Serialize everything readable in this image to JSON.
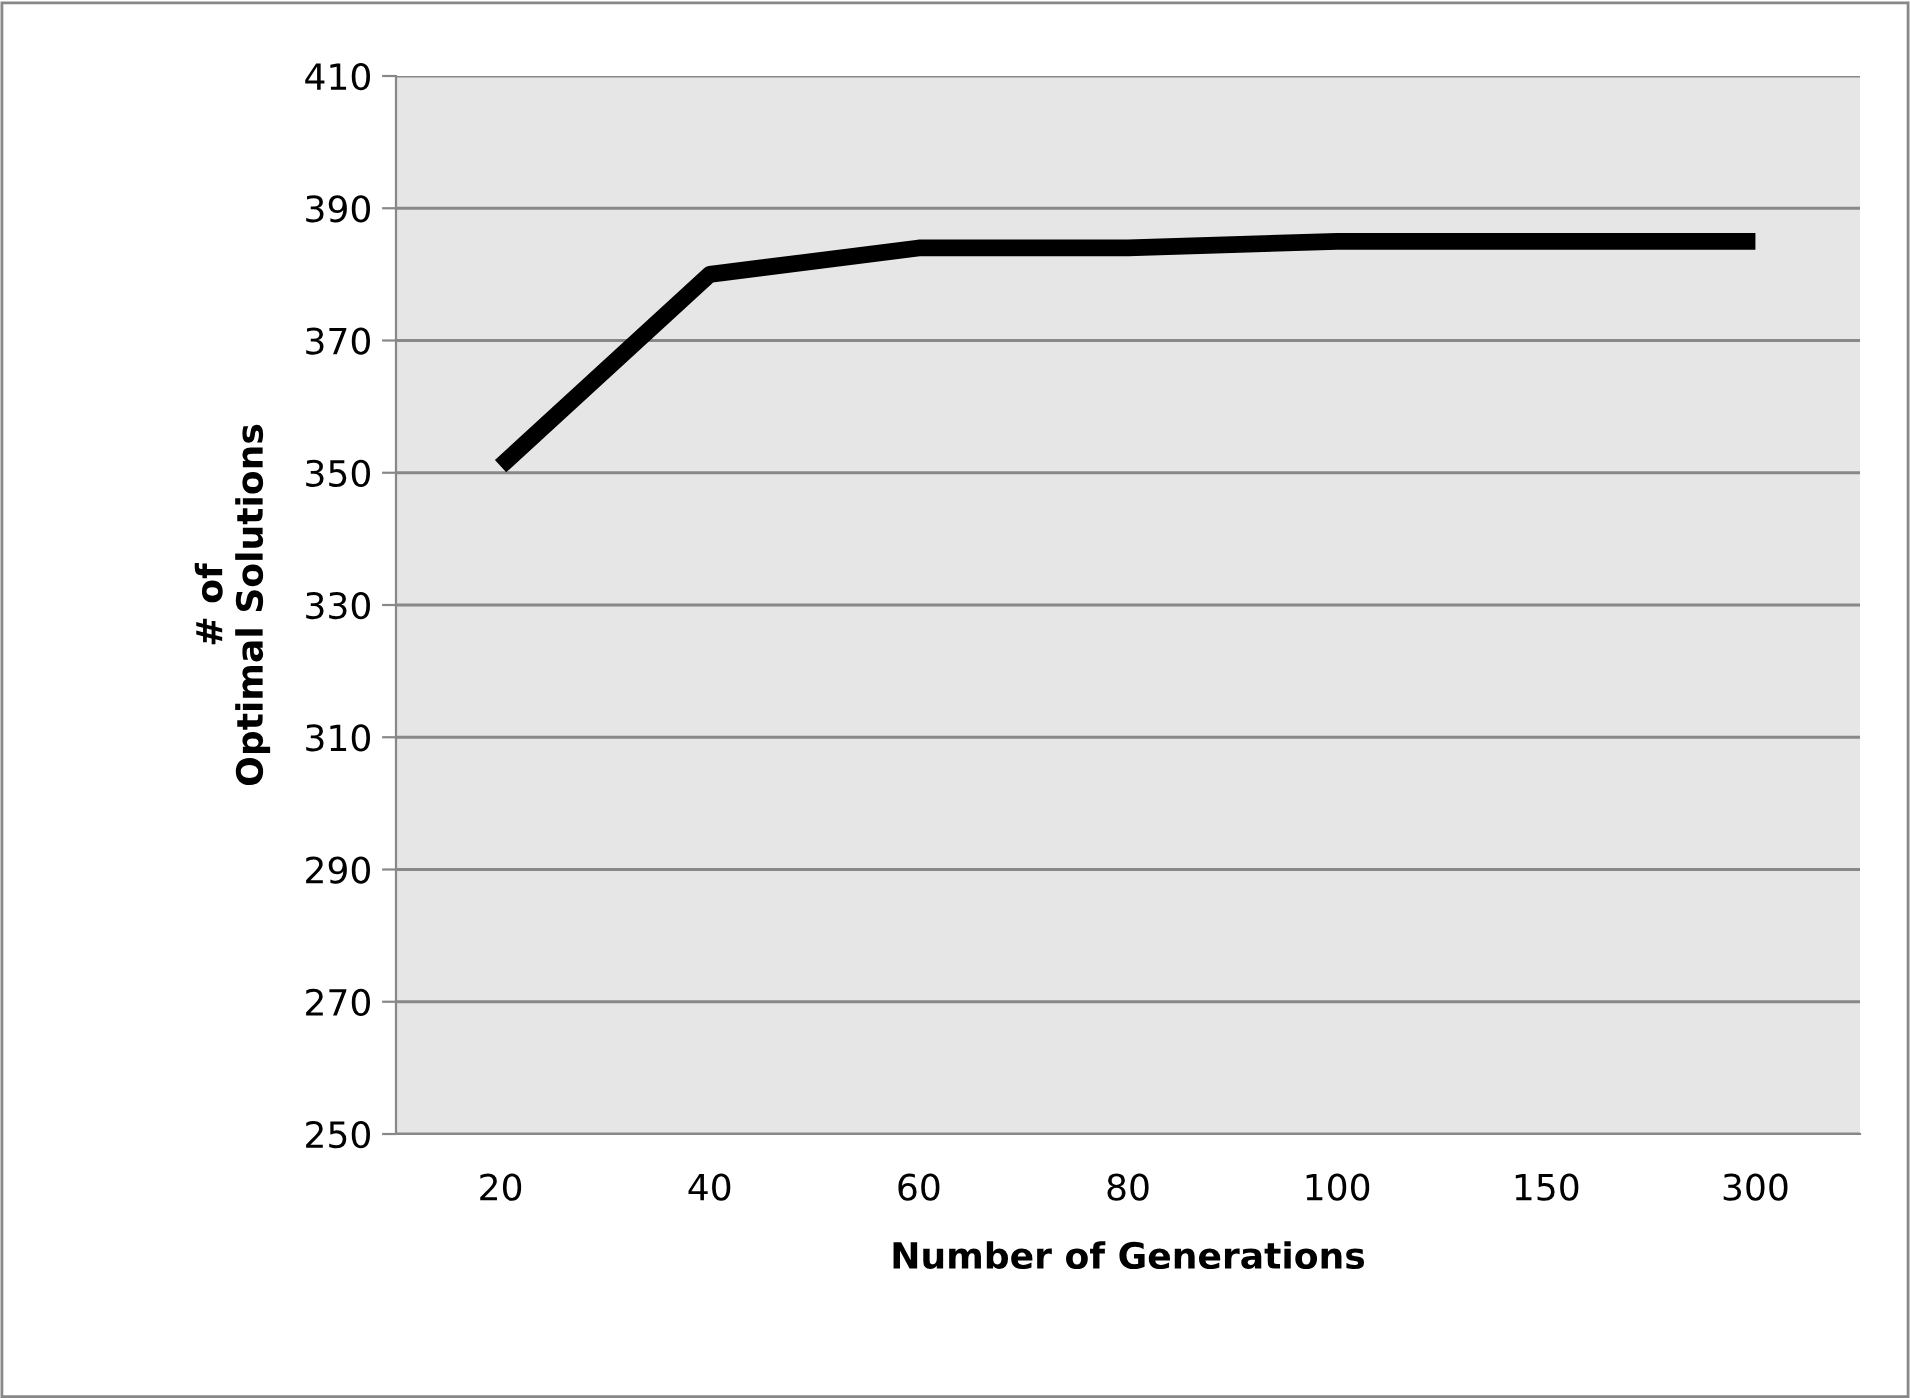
{
  "chart_data": {
    "type": "line",
    "xlabel": "Number of Generations",
    "ylabel": "# of\nOptimal Solutions",
    "categories": [
      "20",
      "40",
      "60",
      "80",
      "100",
      "150",
      "300"
    ],
    "series": [
      {
        "color": "#000000",
        "values": [
          351,
          380,
          384,
          384,
          385,
          385,
          385
        ]
      }
    ],
    "ylim": [
      250,
      410
    ],
    "yticks": [
      250,
      270,
      290,
      310,
      330,
      350,
      370,
      390,
      410
    ],
    "grid": "y",
    "legend": false,
    "marker": "none",
    "line_style": "solid"
  }
}
